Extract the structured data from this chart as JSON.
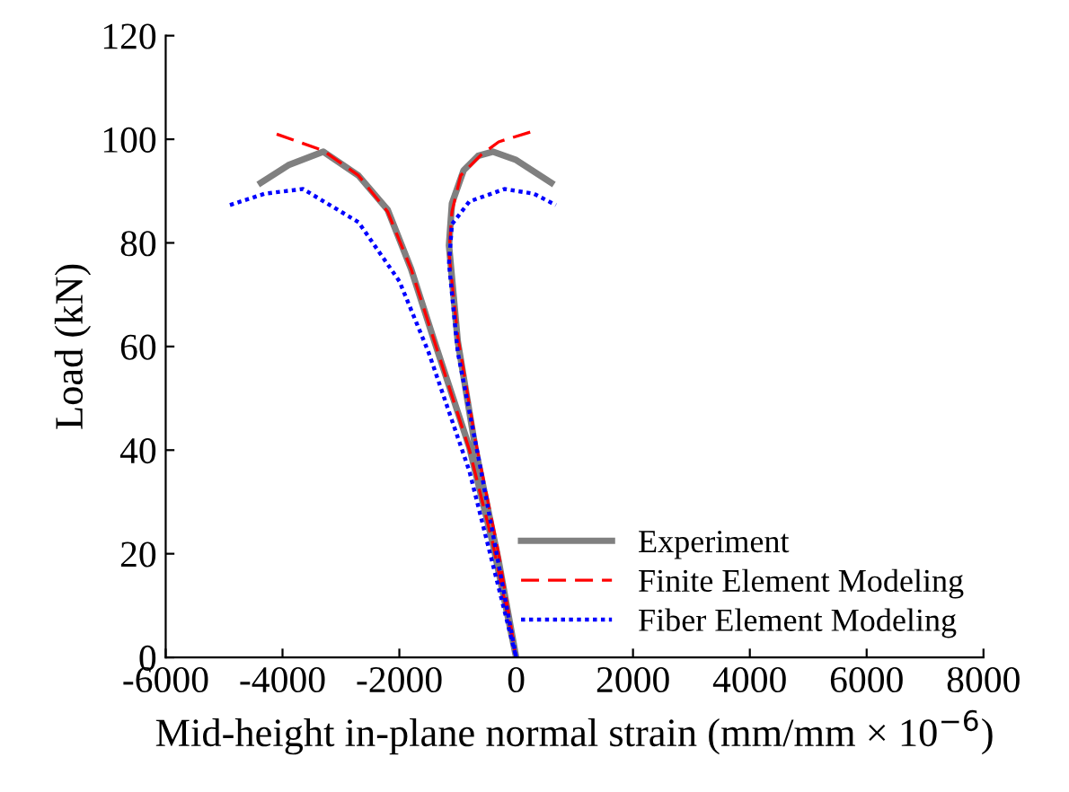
{
  "chart_data": {
    "type": "line",
    "xlabel": "Mid-height in-plane normal strain (mm/mm × 10$^{−6}$)",
    "ylabel": "Load (kN)",
    "xlim": [
      -6000,
      8000
    ],
    "xticks": [
      -6000,
      -4000,
      -2000,
      0,
      2000,
      4000,
      6000,
      8000
    ],
    "ylim": [
      0,
      120
    ],
    "yticks": [
      0,
      20,
      40,
      60,
      80,
      100,
      120
    ],
    "legend": "bottom right",
    "grid": false,
    "marker": "none",
    "series": [
      {
        "name": "Experiment",
        "color": "#808080",
        "line_style": "solid",
        "x": [
          -4370,
          -3900,
          -3300,
          -2700,
          -2200,
          -1800,
          -1400,
          -800,
          -400,
          0,
          -300,
          -700,
          -1000,
          -1150,
          -1100,
          -900,
          -650,
          -400,
          0,
          600
        ],
        "values": [
          91.6,
          95,
          97.6,
          93,
          86.4,
          75,
          61,
          40.5,
          22,
          0,
          18.6,
          40.5,
          61,
          79.5,
          87.6,
          94,
          96.8,
          97.6,
          96,
          91.6
        ]
      },
      {
        "name": "Finite Element Modeling",
        "color": "#ff0000",
        "line_style": "dashed",
        "x": [
          -4100,
          -3300,
          -2700,
          -2200,
          -1800,
          -1400,
          -800,
          -400,
          0,
          -300,
          -700,
          -1000,
          -1150,
          -1100,
          -950,
          -600,
          -300,
          300
        ],
        "values": [
          101,
          97.8,
          93,
          86,
          75,
          61,
          40,
          22,
          0,
          20,
          42,
          62,
          78,
          86,
          93,
          97,
          99.5,
          101.6
        ]
      },
      {
        "name": "Fiber Element Modeling",
        "color": "#0000ff",
        "line_style": "dotted",
        "x": [
          -4900,
          -4300,
          -3650,
          -2700,
          -2000,
          -1500,
          -800,
          0,
          -600,
          -1000,
          -1150,
          -1100,
          -800,
          -200,
          300,
          680
        ],
        "values": [
          87.3,
          89.5,
          90.4,
          84,
          72.6,
          58.9,
          35.9,
          0,
          35.9,
          58.9,
          76,
          83.6,
          88,
          90.4,
          89.5,
          87.3
        ]
      }
    ]
  }
}
